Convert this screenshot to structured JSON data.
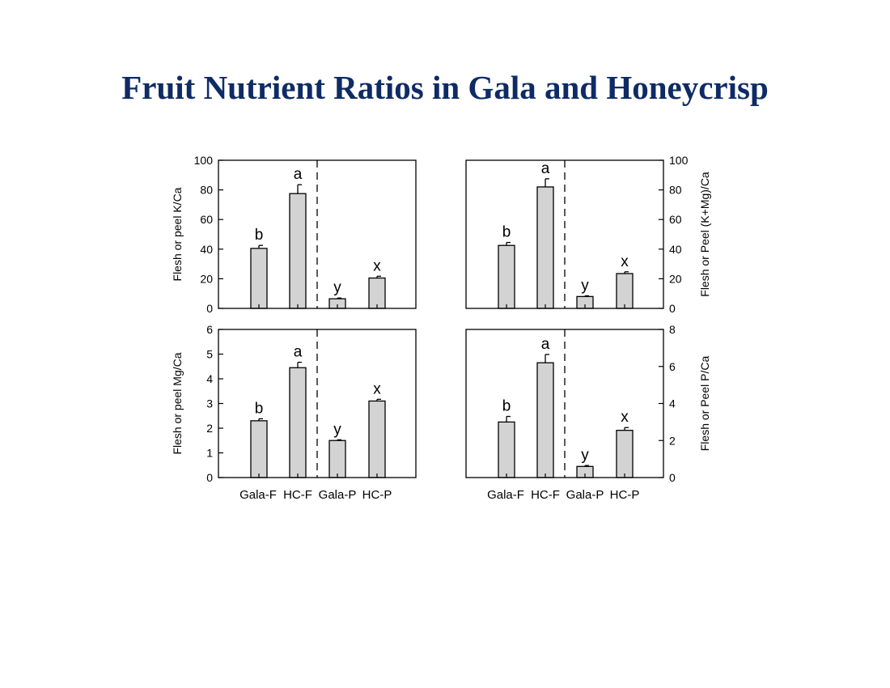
{
  "title": "Fruit Nutrient Ratios in Gala and Honeycrisp",
  "chart_data": [
    {
      "type": "bar",
      "categories": [
        "Gala-F",
        "HC-F",
        "Gala-P",
        "HC-P"
      ],
      "values": [
        40.5,
        77.5,
        6.5,
        20.5
      ],
      "errors": [
        2.0,
        6.0,
        0.5,
        1.2
      ],
      "letters": [
        "b",
        "a",
        "y",
        "x"
      ],
      "ylabel": "Flesh or peel K/Ca",
      "ylim": [
        0,
        100
      ],
      "yticks": [
        0,
        20,
        40,
        60,
        80,
        100
      ],
      "ytick_labels": [
        "0",
        "20",
        "40",
        "60",
        "80",
        "100"
      ],
      "y_axis_side": "left",
      "show_xticklabels": false,
      "divider": "dashed line between HC-F and Gala-P",
      "bar_color": "#d3d3d3"
    },
    {
      "type": "bar",
      "categories": [
        "Gala-F",
        "HC-F",
        "Gala-P",
        "HC-P"
      ],
      "values": [
        42.5,
        82.0,
        8.0,
        23.5
      ],
      "errors": [
        2.0,
        5.5,
        0.5,
        1.2
      ],
      "letters": [
        "b",
        "a",
        "y",
        "x"
      ],
      "ylabel": "Flesh or Peel (K+Mg)/Ca",
      "ylim": [
        0,
        100
      ],
      "yticks": [
        0,
        20,
        40,
        60,
        80,
        100
      ],
      "ytick_labels": [
        "0",
        "20",
        "40",
        "60",
        "80",
        "100"
      ],
      "y_axis_side": "right",
      "show_xticklabels": false,
      "divider": "dashed line between HC-F and Gala-P",
      "bar_color": "#d3d3d3"
    },
    {
      "type": "bar",
      "categories": [
        "Gala-F",
        "HC-F",
        "Gala-P",
        "HC-P"
      ],
      "values": [
        2.3,
        4.45,
        1.5,
        3.1
      ],
      "errors": [
        0.08,
        0.22,
        0.03,
        0.07
      ],
      "letters": [
        "b",
        "a",
        "y",
        "x"
      ],
      "ylabel": "Flesh or peel Mg/Ca",
      "ylim": [
        0,
        6
      ],
      "yticks": [
        0,
        1,
        2,
        3,
        4,
        5,
        6
      ],
      "ytick_labels": [
        "0",
        "1",
        "2",
        "3",
        "4",
        "5",
        "6"
      ],
      "y_axis_side": "left",
      "show_xticklabels": true,
      "divider": "dashed line between HC-F and Gala-P",
      "bar_color": "#d3d3d3"
    },
    {
      "type": "bar",
      "categories": [
        "Gala-F",
        "HC-F",
        "Gala-P",
        "HC-P"
      ],
      "values": [
        3.0,
        6.2,
        0.6,
        2.55
      ],
      "errors": [
        0.3,
        0.45,
        0.05,
        0.15
      ],
      "letters": [
        "b",
        "a",
        "y",
        "x"
      ],
      "ylabel": "Flesh or Peel P/Ca",
      "ylim": [
        0,
        8
      ],
      "yticks": [
        0,
        2,
        4,
        6,
        8
      ],
      "ytick_labels": [
        "0",
        "2",
        "4",
        "6",
        "8"
      ],
      "y_axis_side": "right",
      "show_xticklabels": true,
      "divider": "dashed line between HC-F and Gala-P",
      "bar_color": "#d3d3d3"
    }
  ]
}
